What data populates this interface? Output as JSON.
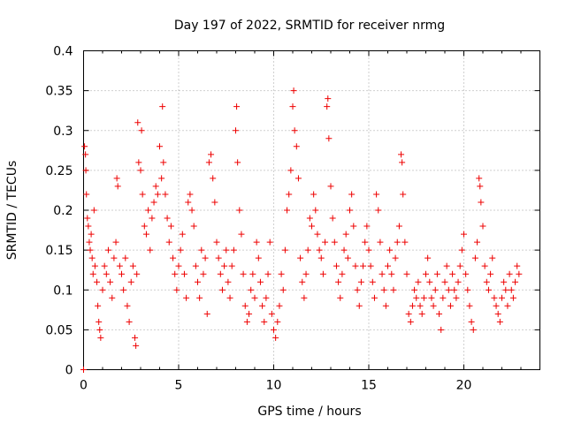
{
  "chart_data": {
    "type": "scatter",
    "title": "Day 197 of 2022, SRMTID for receiver nrmg",
    "xlabel": "GPS time / hours",
    "ylabel": "SRMTID / TECUs",
    "xlim": [
      0,
      24
    ],
    "ylim": [
      0,
      0.4
    ],
    "xticks": [
      0,
      5,
      10,
      15,
      20
    ],
    "xtick_labels": [
      "0",
      "5",
      "10",
      "15",
      "20"
    ],
    "yticks": [
      0,
      0.05,
      0.1,
      0.15,
      0.2,
      0.25,
      0.3,
      0.35,
      0.4
    ],
    "ytick_labels": [
      "0",
      "0.05",
      "0.1",
      "0.15",
      "0.2",
      "0.25",
      "0.3",
      "0.35",
      "0.4"
    ],
    "grid": true,
    "marker": "+",
    "color": "#ee0000",
    "series": [
      {
        "name": "SRMTID",
        "points": [
          [
            0.0,
            0.0
          ],
          [
            0.05,
            0.28
          ],
          [
            0.1,
            0.27
          ],
          [
            0.12,
            0.25
          ],
          [
            0.15,
            0.22
          ],
          [
            0.2,
            0.19
          ],
          [
            0.25,
            0.18
          ],
          [
            0.3,
            0.16
          ],
          [
            0.35,
            0.15
          ],
          [
            0.4,
            0.17
          ],
          [
            0.45,
            0.14
          ],
          [
            0.5,
            0.12
          ],
          [
            0.55,
            0.2
          ],
          [
            0.6,
            0.13
          ],
          [
            0.7,
            0.11
          ],
          [
            0.75,
            0.08
          ],
          [
            0.8,
            0.06
          ],
          [
            0.85,
            0.05
          ],
          [
            0.9,
            0.04
          ],
          [
            1.0,
            0.1
          ],
          [
            1.1,
            0.13
          ],
          [
            1.2,
            0.12
          ],
          [
            1.3,
            0.15
          ],
          [
            1.4,
            0.11
          ],
          [
            1.5,
            0.09
          ],
          [
            1.6,
            0.14
          ],
          [
            1.7,
            0.16
          ],
          [
            1.75,
            0.24
          ],
          [
            1.8,
            0.23
          ],
          [
            1.9,
            0.13
          ],
          [
            2.0,
            0.12
          ],
          [
            2.1,
            0.1
          ],
          [
            2.2,
            0.14
          ],
          [
            2.3,
            0.08
          ],
          [
            2.4,
            0.06
          ],
          [
            2.5,
            0.11
          ],
          [
            2.6,
            0.13
          ],
          [
            2.7,
            0.04
          ],
          [
            2.75,
            0.03
          ],
          [
            2.8,
            0.12
          ],
          [
            2.85,
            0.31
          ],
          [
            2.9,
            0.26
          ],
          [
            3.0,
            0.25
          ],
          [
            3.05,
            0.3
          ],
          [
            3.1,
            0.22
          ],
          [
            3.2,
            0.18
          ],
          [
            3.3,
            0.17
          ],
          [
            3.4,
            0.2
          ],
          [
            3.5,
            0.15
          ],
          [
            3.6,
            0.19
          ],
          [
            3.7,
            0.21
          ],
          [
            3.8,
            0.23
          ],
          [
            3.9,
            0.22
          ],
          [
            4.0,
            0.28
          ],
          [
            4.1,
            0.24
          ],
          [
            4.15,
            0.33
          ],
          [
            4.2,
            0.26
          ],
          [
            4.3,
            0.22
          ],
          [
            4.4,
            0.19
          ],
          [
            4.5,
            0.16
          ],
          [
            4.6,
            0.18
          ],
          [
            4.7,
            0.14
          ],
          [
            4.8,
            0.12
          ],
          [
            4.9,
            0.1
          ],
          [
            5.0,
            0.13
          ],
          [
            5.1,
            0.15
          ],
          [
            5.2,
            0.17
          ],
          [
            5.3,
            0.12
          ],
          [
            5.4,
            0.09
          ],
          [
            5.5,
            0.21
          ],
          [
            5.6,
            0.22
          ],
          [
            5.7,
            0.2
          ],
          [
            5.8,
            0.18
          ],
          [
            5.9,
            0.13
          ],
          [
            6.0,
            0.11
          ],
          [
            6.1,
            0.09
          ],
          [
            6.2,
            0.15
          ],
          [
            6.3,
            0.12
          ],
          [
            6.4,
            0.14
          ],
          [
            6.5,
            0.07
          ],
          [
            6.6,
            0.26
          ],
          [
            6.7,
            0.27
          ],
          [
            6.8,
            0.24
          ],
          [
            6.9,
            0.21
          ],
          [
            7.0,
            0.16
          ],
          [
            7.1,
            0.14
          ],
          [
            7.2,
            0.12
          ],
          [
            7.3,
            0.1
          ],
          [
            7.4,
            0.13
          ],
          [
            7.5,
            0.15
          ],
          [
            7.6,
            0.11
          ],
          [
            7.7,
            0.09
          ],
          [
            7.8,
            0.13
          ],
          [
            7.9,
            0.15
          ],
          [
            8.0,
            0.3
          ],
          [
            8.05,
            0.33
          ],
          [
            8.1,
            0.26
          ],
          [
            8.2,
            0.2
          ],
          [
            8.3,
            0.17
          ],
          [
            8.4,
            0.12
          ],
          [
            8.5,
            0.08
          ],
          [
            8.6,
            0.06
          ],
          [
            8.7,
            0.07
          ],
          [
            8.8,
            0.1
          ],
          [
            8.9,
            0.12
          ],
          [
            9.0,
            0.09
          ],
          [
            9.1,
            0.16
          ],
          [
            9.2,
            0.14
          ],
          [
            9.3,
            0.11
          ],
          [
            9.4,
            0.08
          ],
          [
            9.5,
            0.06
          ],
          [
            9.6,
            0.09
          ],
          [
            9.7,
            0.12
          ],
          [
            9.8,
            0.16
          ],
          [
            9.9,
            0.07
          ],
          [
            10.0,
            0.05
          ],
          [
            10.1,
            0.04
          ],
          [
            10.2,
            0.06
          ],
          [
            10.3,
            0.08
          ],
          [
            10.4,
            0.12
          ],
          [
            10.5,
            0.1
          ],
          [
            10.6,
            0.15
          ],
          [
            10.7,
            0.2
          ],
          [
            10.8,
            0.22
          ],
          [
            10.9,
            0.25
          ],
          [
            11.0,
            0.33
          ],
          [
            11.05,
            0.35
          ],
          [
            11.1,
            0.3
          ],
          [
            11.2,
            0.28
          ],
          [
            11.3,
            0.24
          ],
          [
            11.4,
            0.14
          ],
          [
            11.5,
            0.11
          ],
          [
            11.6,
            0.09
          ],
          [
            11.7,
            0.12
          ],
          [
            11.8,
            0.15
          ],
          [
            11.9,
            0.19
          ],
          [
            12.0,
            0.18
          ],
          [
            12.1,
            0.22
          ],
          [
            12.2,
            0.2
          ],
          [
            12.3,
            0.17
          ],
          [
            12.4,
            0.15
          ],
          [
            12.5,
            0.14
          ],
          [
            12.6,
            0.12
          ],
          [
            12.7,
            0.16
          ],
          [
            12.8,
            0.33
          ],
          [
            12.85,
            0.34
          ],
          [
            12.9,
            0.29
          ],
          [
            13.0,
            0.23
          ],
          [
            13.1,
            0.19
          ],
          [
            13.2,
            0.16
          ],
          [
            13.3,
            0.13
          ],
          [
            13.4,
            0.11
          ],
          [
            13.5,
            0.09
          ],
          [
            13.6,
            0.12
          ],
          [
            13.7,
            0.15
          ],
          [
            13.8,
            0.17
          ],
          [
            13.9,
            0.14
          ],
          [
            14.0,
            0.2
          ],
          [
            14.1,
            0.22
          ],
          [
            14.2,
            0.18
          ],
          [
            14.3,
            0.13
          ],
          [
            14.4,
            0.1
          ],
          [
            14.5,
            0.08
          ],
          [
            14.6,
            0.11
          ],
          [
            14.7,
            0.13
          ],
          [
            14.8,
            0.16
          ],
          [
            14.9,
            0.18
          ],
          [
            15.0,
            0.15
          ],
          [
            15.1,
            0.13
          ],
          [
            15.2,
            0.11
          ],
          [
            15.3,
            0.09
          ],
          [
            15.4,
            0.22
          ],
          [
            15.5,
            0.2
          ],
          [
            15.6,
            0.16
          ],
          [
            15.7,
            0.12
          ],
          [
            15.8,
            0.1
          ],
          [
            15.9,
            0.08
          ],
          [
            16.0,
            0.13
          ],
          [
            16.1,
            0.15
          ],
          [
            16.2,
            0.12
          ],
          [
            16.3,
            0.1
          ],
          [
            16.4,
            0.14
          ],
          [
            16.5,
            0.16
          ],
          [
            16.6,
            0.18
          ],
          [
            16.7,
            0.27
          ],
          [
            16.75,
            0.26
          ],
          [
            16.8,
            0.22
          ],
          [
            16.9,
            0.16
          ],
          [
            17.0,
            0.12
          ],
          [
            17.1,
            0.07
          ],
          [
            17.2,
            0.06
          ],
          [
            17.3,
            0.08
          ],
          [
            17.4,
            0.1
          ],
          [
            17.5,
            0.09
          ],
          [
            17.6,
            0.11
          ],
          [
            17.7,
            0.08
          ],
          [
            17.8,
            0.07
          ],
          [
            17.9,
            0.09
          ],
          [
            18.0,
            0.12
          ],
          [
            18.1,
            0.14
          ],
          [
            18.2,
            0.11
          ],
          [
            18.3,
            0.09
          ],
          [
            18.4,
            0.08
          ],
          [
            18.5,
            0.1
          ],
          [
            18.6,
            0.12
          ],
          [
            18.7,
            0.07
          ],
          [
            18.8,
            0.05
          ],
          [
            18.9,
            0.09
          ],
          [
            19.0,
            0.11
          ],
          [
            19.1,
            0.13
          ],
          [
            19.2,
            0.1
          ],
          [
            19.3,
            0.08
          ],
          [
            19.4,
            0.12
          ],
          [
            19.5,
            0.1
          ],
          [
            19.6,
            0.09
          ],
          [
            19.7,
            0.11
          ],
          [
            19.8,
            0.13
          ],
          [
            19.9,
            0.15
          ],
          [
            20.0,
            0.17
          ],
          [
            20.1,
            0.12
          ],
          [
            20.2,
            0.1
          ],
          [
            20.3,
            0.08
          ],
          [
            20.4,
            0.06
          ],
          [
            20.5,
            0.05
          ],
          [
            20.6,
            0.14
          ],
          [
            20.7,
            0.16
          ],
          [
            20.8,
            0.24
          ],
          [
            20.85,
            0.23
          ],
          [
            20.9,
            0.21
          ],
          [
            21.0,
            0.18
          ],
          [
            21.1,
            0.13
          ],
          [
            21.2,
            0.11
          ],
          [
            21.3,
            0.1
          ],
          [
            21.4,
            0.12
          ],
          [
            21.5,
            0.14
          ],
          [
            21.6,
            0.09
          ],
          [
            21.7,
            0.08
          ],
          [
            21.8,
            0.07
          ],
          [
            21.9,
            0.06
          ],
          [
            22.0,
            0.09
          ],
          [
            22.1,
            0.11
          ],
          [
            22.2,
            0.1
          ],
          [
            22.3,
            0.08
          ],
          [
            22.4,
            0.12
          ],
          [
            22.5,
            0.1
          ],
          [
            22.6,
            0.09
          ],
          [
            22.7,
            0.11
          ],
          [
            22.8,
            0.13
          ],
          [
            22.9,
            0.12
          ]
        ]
      }
    ]
  }
}
